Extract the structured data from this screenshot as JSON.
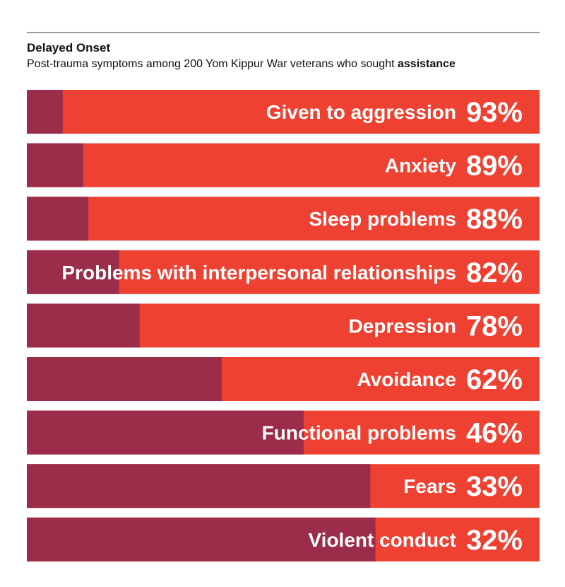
{
  "header": {
    "title": "Delayed Onset",
    "subtitle_main": "Post-trauma symptoms among 200 Yom Kippur War veterans who sought",
    "subtitle_bold": "assistance"
  },
  "colors": {
    "bar_full": "#ee4132",
    "bar_remainder": "#9b2d4a",
    "text": "#ffffff"
  },
  "chart_data": {
    "type": "bar",
    "orientation": "horizontal",
    "categories": [
      "Given to aggression",
      "Anxiety",
      "Sleep problems",
      "Problems with interpersonal relationships",
      "Depression",
      "Avoidance",
      "Functional problems",
      "Fears",
      "Violent conduct"
    ],
    "values": [
      93,
      89,
      88,
      82,
      78,
      62,
      46,
      33,
      32
    ],
    "value_labels": [
      "93%",
      "89%",
      "88%",
      "82%",
      "78%",
      "62%",
      "46%",
      "33%",
      "32%"
    ],
    "xlim": [
      0,
      100
    ],
    "unit": "%",
    "grid": false,
    "legend": "none"
  }
}
